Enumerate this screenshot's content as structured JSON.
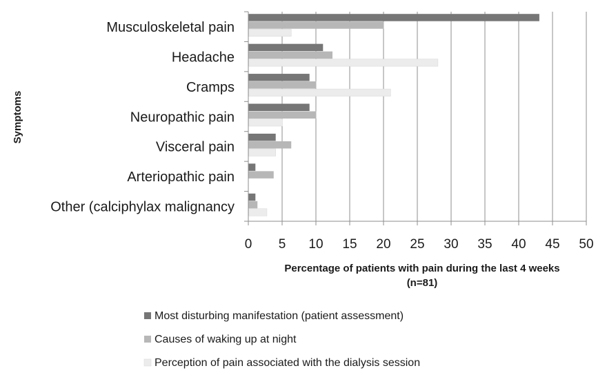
{
  "chart_data": {
    "type": "bar",
    "orientation": "horizontal",
    "title": "",
    "xlabel": "Percentage of patients with pain during the last 4 weeks (n=81)",
    "xlabel_lines": [
      "Percentage of patients with pain during the last 4 weeks",
      "(n=81)"
    ],
    "ylabel": "Symptoms",
    "xlim": [
      0,
      50
    ],
    "xticks": [
      0,
      5,
      10,
      15,
      20,
      25,
      30,
      35,
      40,
      45,
      50
    ],
    "grid": true,
    "legend_position": "bottom",
    "categories": [
      "Musculoskeletal pain",
      "Headache",
      "Cramps",
      "Neuropathic pain",
      "Visceral pain",
      "Arteriopathic pain",
      "Other (calciphylax malignancy"
    ],
    "series": [
      {
        "name": "Most disturbing manifestation (patient assessment)",
        "color": "#767676",
        "values": [
          43,
          11,
          9,
          9,
          4,
          1,
          1
        ]
      },
      {
        "name": "Causes of waking up at night",
        "color": "#b7b7b7",
        "values": [
          20,
          12.4,
          10,
          10,
          6.3,
          3.7,
          1.3
        ]
      },
      {
        "name": "Perception of pain associated with the dialysis session",
        "color": "#ececec",
        "values": [
          6.3,
          28,
          21,
          5,
          4,
          0,
          2.7
        ]
      }
    ]
  }
}
